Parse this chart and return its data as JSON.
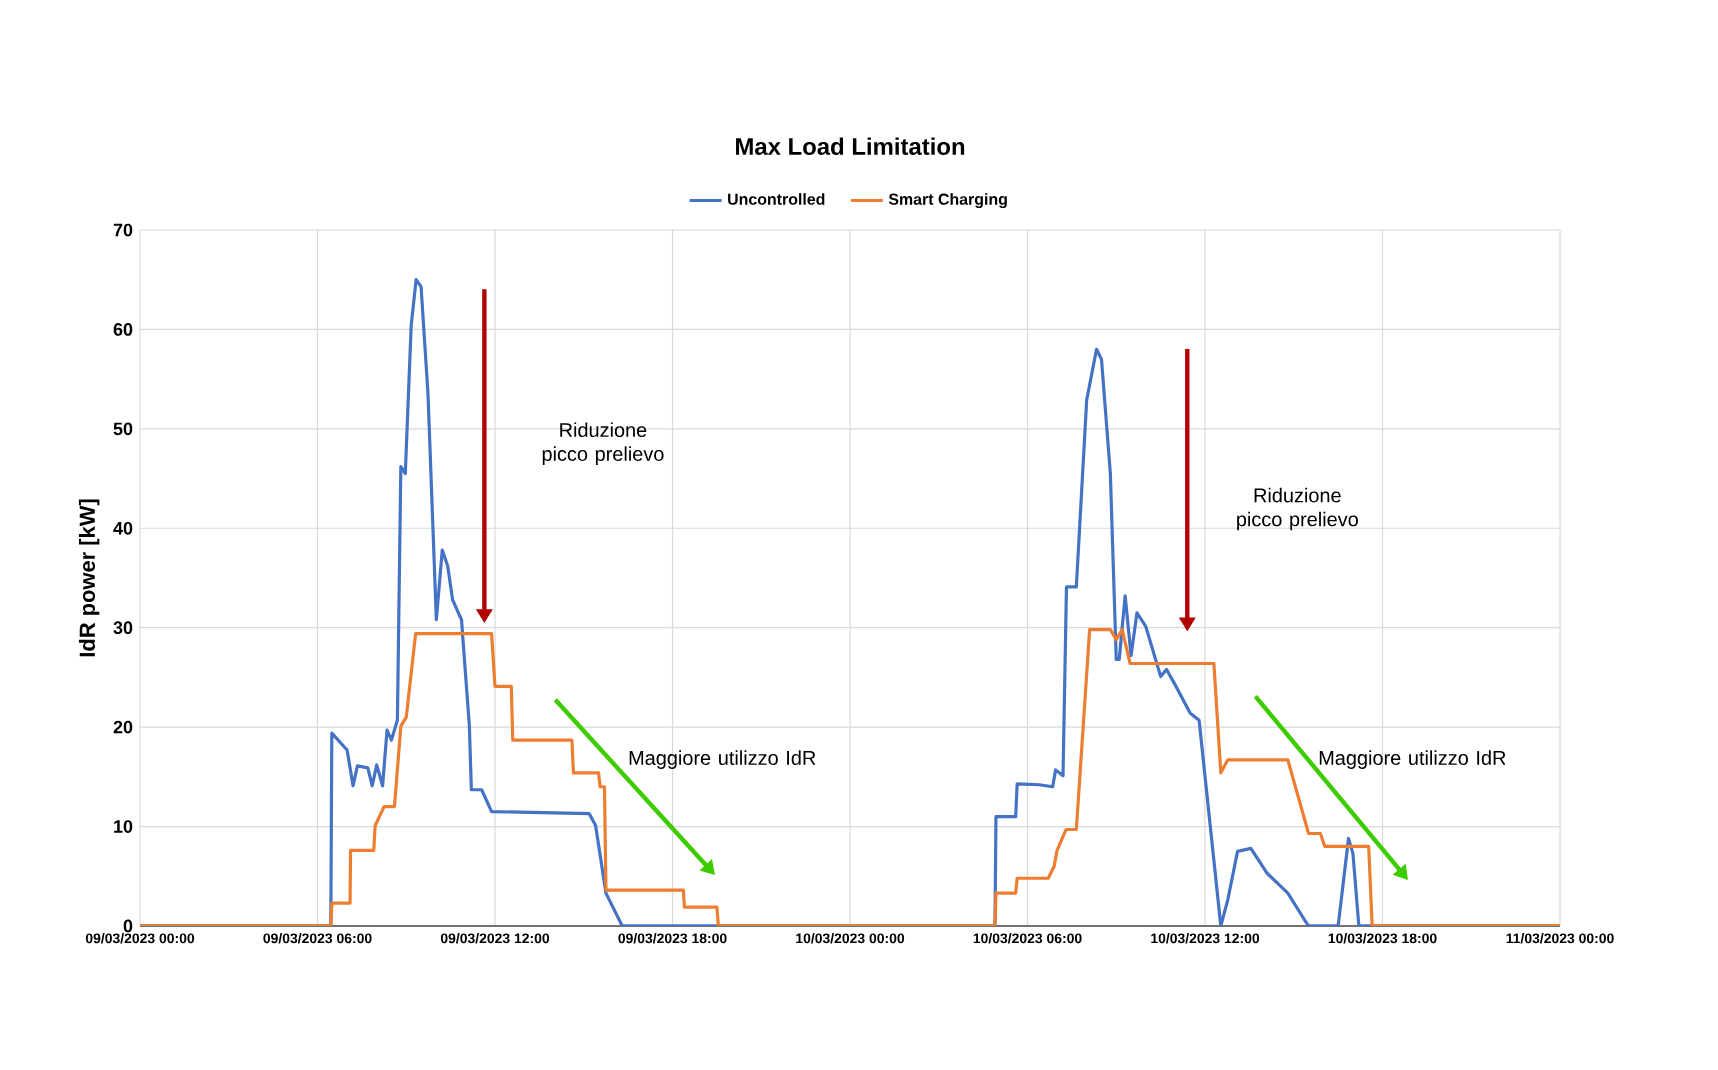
{
  "chart_data": {
    "type": "line",
    "title": "Max Load Limitation",
    "ylabel": "IdR power [kW]",
    "xlim": [
      "2023-03-09T00:00",
      "2023-03-11T00:00"
    ],
    "ylim": [
      0,
      70
    ],
    "yticks": [
      0,
      10,
      20,
      30,
      40,
      50,
      60,
      70
    ],
    "xticks": [
      {
        "value": "2023-03-09T00:00",
        "label": "09/03/2023 00:00"
      },
      {
        "value": "2023-03-09T06:00",
        "label": "09/03/2023 06:00"
      },
      {
        "value": "2023-03-09T12:00",
        "label": "09/03/2023 12:00"
      },
      {
        "value": "2023-03-09T18:00",
        "label": "09/03/2023 18:00"
      },
      {
        "value": "2023-03-10T00:00",
        "label": "10/03/2023 00:00"
      },
      {
        "value": "2023-03-10T06:00",
        "label": "10/03/2023 06:00"
      },
      {
        "value": "2023-03-10T12:00",
        "label": "10/03/2023 12:00"
      },
      {
        "value": "2023-03-10T18:00",
        "label": "10/03/2023 18:00"
      },
      {
        "value": "2023-03-11T00:00",
        "label": "11/03/2023 00:00"
      }
    ],
    "grid": true,
    "legend": "top",
    "marker": "none",
    "line_style": "solid",
    "series": [
      {
        "name": "Uncontrolled",
        "color": "#4472c4",
        "x": [
          "2023-03-09T00:00",
          "2023-03-09T06:27",
          "2023-03-09T06:29",
          "2023-03-09T07:00",
          "2023-03-09T07:12",
          "2023-03-09T07:21",
          "2023-03-09T07:42",
          "2023-03-09T07:51",
          "2023-03-09T08:00",
          "2023-03-09T08:12",
          "2023-03-09T08:21",
          "2023-03-09T08:30",
          "2023-03-09T08:42",
          "2023-03-09T08:49",
          "2023-03-09T08:58",
          "2023-03-09T09:10",
          "2023-03-09T09:20",
          "2023-03-09T09:30",
          "2023-03-09T09:44",
          "2023-03-09T10:01",
          "2023-03-09T10:13",
          "2023-03-09T10:24",
          "2023-03-09T10:34",
          "2023-03-09T10:52",
          "2023-03-09T11:08",
          "2023-03-09T11:12",
          "2023-03-09T11:33",
          "2023-03-09T11:53",
          "2023-03-09T15:11",
          "2023-03-09T15:24",
          "2023-03-09T15:45",
          "2023-03-09T16:18",
          "2023-03-10T04:54",
          "2023-03-10T04:56",
          "2023-03-10T05:36",
          "2023-03-10T05:39",
          "2023-03-10T06:24",
          "2023-03-10T06:51",
          "2023-03-10T06:57",
          "2023-03-10T07:12",
          "2023-03-10T07:19",
          "2023-03-10T07:39",
          "2023-03-10T08:00",
          "2023-03-10T08:20",
          "2023-03-10T08:30",
          "2023-03-10T08:48",
          "2023-03-10T09:00",
          "2023-03-10T09:06",
          "2023-03-10T09:18",
          "2023-03-10T09:30",
          "2023-03-10T09:42",
          "2023-03-10T10:00",
          "2023-03-10T10:30",
          "2023-03-10T10:42",
          "2023-03-10T11:00",
          "2023-03-10T11:30",
          "2023-03-10T11:48",
          "2023-03-10T12:32",
          "2023-03-10T12:46",
          "2023-03-10T13:06",
          "2023-03-10T13:33",
          "2023-03-10T14:06",
          "2023-03-10T14:48",
          "2023-03-10T15:22",
          "2023-03-10T15:30",
          "2023-03-10T16:30",
          "2023-03-10T16:51",
          "2023-03-10T17:00",
          "2023-03-10T17:12",
          "2023-03-11T00:00"
        ],
        "values": [
          0,
          0,
          19.4,
          17.7,
          14.1,
          16.1,
          15.9,
          14.1,
          16.2,
          14.1,
          19.7,
          18.7,
          20.7,
          46.2,
          45.5,
          60.4,
          65.0,
          64.3,
          53.6,
          30.8,
          37.8,
          36.2,
          32.8,
          30.8,
          20.1,
          13.7,
          13.7,
          11.5,
          11.3,
          10.1,
          3.3,
          0,
          0,
          11.0,
          11.0,
          14.3,
          14.2,
          14.0,
          15.7,
          15.1,
          34.1,
          34.1,
          52.9,
          58.0,
          57.0,
          45.5,
          26.8,
          26.8,
          33.2,
          27.2,
          31.5,
          30.1,
          25.1,
          25.8,
          24.2,
          21.4,
          20.7,
          0,
          2.6,
          7.5,
          7.8,
          5.3,
          3.3,
          0.6,
          0,
          0,
          8.8,
          7.3,
          0,
          0
        ]
      },
      {
        "name": "Smart Charging",
        "color": "#ed7d31",
        "x": [
          "2023-03-09T00:00",
          "2023-03-09T06:27",
          "2023-03-09T06:29",
          "2023-03-09T07:06",
          "2023-03-09T07:07",
          "2023-03-09T07:54",
          "2023-03-09T07:57",
          "2023-03-09T08:15",
          "2023-03-09T08:36",
          "2023-03-09T08:49",
          "2023-03-09T09:00",
          "2023-03-09T09:19",
          "2023-03-09T11:53",
          "2023-03-09T12:00",
          "2023-03-09T12:33",
          "2023-03-09T12:36",
          "2023-03-09T14:36",
          "2023-03-09T14:39",
          "2023-03-09T15:30",
          "2023-03-09T15:33",
          "2023-03-09T15:42",
          "2023-03-09T15:45",
          "2023-03-09T18:22",
          "2023-03-09T18:24",
          "2023-03-09T19:30",
          "2023-03-09T19:33",
          "2023-03-10T04:54",
          "2023-03-10T04:56",
          "2023-03-10T05:36",
          "2023-03-10T05:39",
          "2023-03-10T06:42",
          "2023-03-10T06:54",
          "2023-03-10T07:00",
          "2023-03-10T07:18",
          "2023-03-10T07:39",
          "2023-03-10T08:06",
          "2023-03-10T08:48",
          "2023-03-10T09:00",
          "2023-03-10T09:12",
          "2023-03-10T09:28",
          "2023-03-10T12:18",
          "2023-03-10T12:32",
          "2023-03-10T12:46",
          "2023-03-10T14:48",
          "2023-03-10T15:30",
          "2023-03-10T15:54",
          "2023-03-10T16:03",
          "2023-03-10T17:32",
          "2023-03-10T17:39",
          "2023-03-11T00:00"
        ],
        "values": [
          0,
          0,
          2.3,
          2.3,
          7.6,
          7.6,
          10.1,
          12.0,
          12.0,
          20.1,
          21.0,
          29.4,
          29.4,
          24.1,
          24.1,
          18.7,
          18.7,
          15.4,
          15.4,
          14.0,
          14.0,
          3.6,
          3.6,
          1.9,
          1.9,
          0,
          0,
          3.3,
          3.3,
          4.8,
          4.8,
          6.0,
          7.6,
          9.7,
          9.7,
          29.8,
          29.8,
          28.8,
          29.8,
          26.4,
          26.4,
          15.4,
          16.7,
          16.7,
          9.3,
          9.3,
          8.0,
          8.0,
          0,
          0
        ]
      }
    ],
    "annotations": [
      "Riduzione picco prelievo",
      "Maggiore utilizzo IdR",
      "Riduzione picco prelievo",
      "Maggiore utilizzo IdR"
    ]
  }
}
